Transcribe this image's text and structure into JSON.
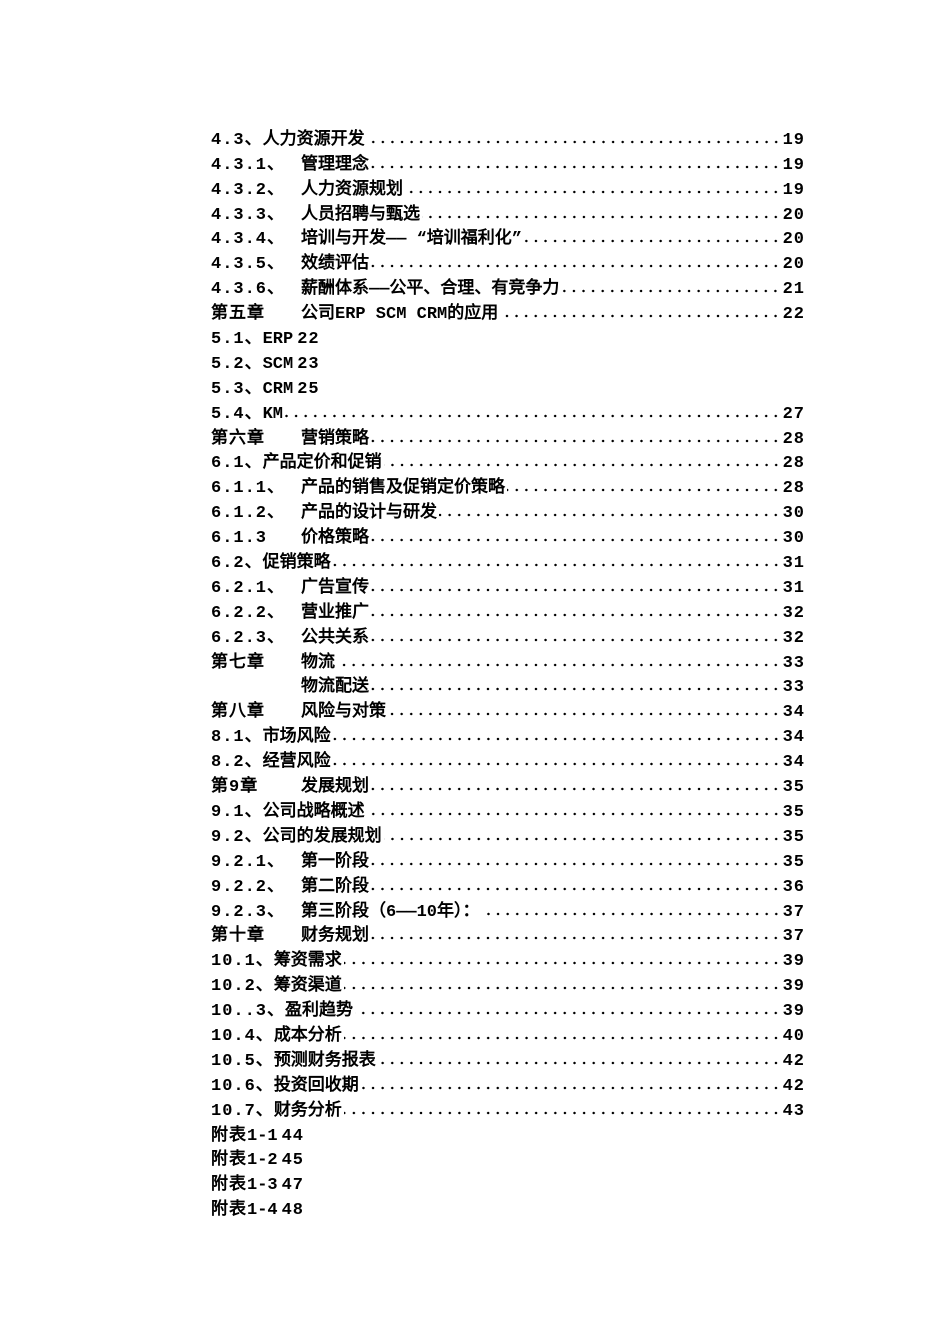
{
  "toc": [
    {
      "num": "4.3、",
      "title": "人力资源开发",
      "page": "19",
      "tab": false,
      "leader": true
    },
    {
      "num": "4.3.1、",
      "title": "管理理念",
      "page": "19",
      "tab": true,
      "leader": true
    },
    {
      "num": "4.3.2、",
      "title": "人力资源规划",
      "page": "19",
      "tab": true,
      "leader": true
    },
    {
      "num": "4.3.3、",
      "title": "人员招聘与甄选",
      "page": "20",
      "tab": true,
      "leader": true
    },
    {
      "num": "4.3.4、",
      "title": "培训与开发—— “培训福利化”",
      "page": "20",
      "tab": true,
      "leader": true
    },
    {
      "num": "4.3.5、",
      "title": "效绩评估",
      "page": "20",
      "tab": true,
      "leader": true
    },
    {
      "num": "4.3.6、",
      "title": "薪酬体系——公平、合理、有竞争力",
      "page": "21",
      "tab": true,
      "leader": true
    },
    {
      "num": "第五章",
      "title": "公司ERP SCM CRM的应用",
      "page": "22",
      "tab": true,
      "leader": true
    },
    {
      "num": "5.1、",
      "title": "ERP",
      "page": "22",
      "tab": false,
      "leader": false
    },
    {
      "num": "5.2、",
      "title": "SCM",
      "page": "23",
      "tab": false,
      "leader": false
    },
    {
      "num": "5.3、",
      "title": "CRM",
      "page": "25",
      "tab": false,
      "leader": false
    },
    {
      "num": "5.4、",
      "title": "KM ",
      "page": "27",
      "tab": false,
      "leader": true
    },
    {
      "num": "第六章",
      "title": "营销策略",
      "page": "28",
      "tab": true,
      "leader": true
    },
    {
      "num": "6.1、",
      "title": "产品定价和促销",
      "page": "28",
      "tab": false,
      "leader": true
    },
    {
      "num": "6.1.1、",
      "title": "产品的销售及促销定价策略",
      "page": "28",
      "tab": true,
      "leader": true
    },
    {
      "num": "6.1.2、",
      "title": "产品的设计与研发",
      "page": "30",
      "tab": true,
      "leader": true
    },
    {
      "num": "6.1.3",
      "title": "价格策略",
      "page": "30",
      "tab": true,
      "leader": true
    },
    {
      "num": "6.2、",
      "title": "促销策略",
      "page": "31",
      "tab": false,
      "leader": true
    },
    {
      "num": "6.2.1、",
      "title": "广告宣传",
      "page": "31",
      "tab": true,
      "leader": true
    },
    {
      "num": "6.2.2、",
      "title": "营业推广",
      "page": "32",
      "tab": true,
      "leader": true
    },
    {
      "num": "6.2.3、",
      "title": "公共关系",
      "page": "32",
      "tab": true,
      "leader": true
    },
    {
      "num": "第七章",
      "title": "物流",
      "page": "33",
      "tab": true,
      "leader": true
    },
    {
      "num": "",
      "title": "物流配送",
      "page": "33",
      "tab": true,
      "leader": true
    },
    {
      "num": "第八章",
      "title": "风险与对策",
      "page": "34",
      "tab": true,
      "leader": true
    },
    {
      "num": "8.1、",
      "title": "市场风险",
      "page": "34",
      "tab": false,
      "leader": true
    },
    {
      "num": "8.2、",
      "title": "经营风险",
      "page": "34",
      "tab": false,
      "leader": true
    },
    {
      "num": "第9章",
      "title": "发展规划",
      "page": "35",
      "tab": true,
      "leader": true
    },
    {
      "num": "9.1、",
      "title": "公司战略概述",
      "page": "35",
      "tab": false,
      "leader": true
    },
    {
      "num": "9.2、",
      "title": "公司的发展规划",
      "page": "35",
      "tab": false,
      "leader": true
    },
    {
      "num": "9.2.1、",
      "title": "第一阶段",
      "page": "35",
      "tab": true,
      "leader": true
    },
    {
      "num": "9.2.2、",
      "title": "第二阶段",
      "page": "36",
      "tab": true,
      "leader": true
    },
    {
      "num": "9.2.3、",
      "title": "第三阶段（6——10年）：",
      "page": "37",
      "tab": true,
      "leader": true
    },
    {
      "num": "第十章",
      "title": "财务规划",
      "page": "37",
      "tab": true,
      "leader": true
    },
    {
      "num": "10.1、",
      "title": "筹资需求",
      "page": "39",
      "tab": false,
      "leader": true
    },
    {
      "num": "10.2、",
      "title": "筹资渠道",
      "page": "39",
      "tab": false,
      "leader": true
    },
    {
      "num": "10..3、",
      "title": "盈利趋势",
      "page": "39",
      "tab": false,
      "leader": true
    },
    {
      "num": "10.4、",
      "title": "成本分析",
      "page": "40",
      "tab": false,
      "leader": true
    },
    {
      "num": "10.5、",
      "title": "预测财务报表",
      "page": "42",
      "tab": false,
      "leader": true
    },
    {
      "num": "10.6、",
      "title": "投资回收期",
      "page": "42",
      "tab": false,
      "leader": true
    },
    {
      "num": "10.7、",
      "title": "财务分析",
      "page": "43",
      "tab": false,
      "leader": true
    },
    {
      "num": "附表",
      "title": "1-1 ",
      "page": "44",
      "tab": false,
      "leader": false
    },
    {
      "num": "附表",
      "title": "1-2 ",
      "page": "45",
      "tab": false,
      "leader": false
    },
    {
      "num": "附表",
      "title": "1-3 ",
      "page": "47",
      "tab": false,
      "leader": false
    },
    {
      "num": "附表",
      "title": "1-4 ",
      "page": "48",
      "tab": false,
      "leader": false
    }
  ]
}
